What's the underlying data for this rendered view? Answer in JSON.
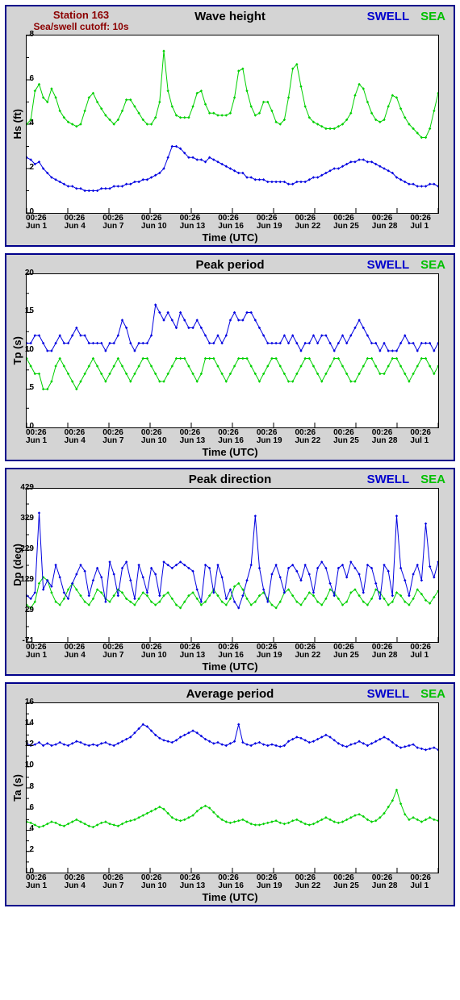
{
  "station_line1": "Station 163",
  "station_line2": "Sea/swell cutoff: 10s",
  "legend_swell": "SWELL",
  "legend_sea": "SEA",
  "colors": {
    "swell": "#0000e0",
    "sea": "#00d000",
    "panel_bg": "#d4d4d4",
    "panel_border": "#00008b",
    "plot_bg": "#ffffff",
    "axis": "#000000",
    "station_text": "#8b0000"
  },
  "x_ticks": [
    {
      "t": "00:26",
      "d": "Jun 1"
    },
    {
      "t": "00:26",
      "d": "Jun 4"
    },
    {
      "t": "00:26",
      "d": "Jun 7"
    },
    {
      "t": "00:26",
      "d": "Jun 10"
    },
    {
      "t": "00:26",
      "d": "Jun 13"
    },
    {
      "t": "00:26",
      "d": "Jun 16"
    },
    {
      "t": "00:26",
      "d": "Jun 19"
    },
    {
      "t": "00:26",
      "d": "Jun 22"
    },
    {
      "t": "00:26",
      "d": "Jun 25"
    },
    {
      "t": "00:26",
      "d": "Jun 28"
    },
    {
      "t": "00:26",
      "d": "Jul 1"
    }
  ],
  "x_label": "Time (UTC)",
  "charts": [
    {
      "id": "wave-height",
      "title": "Wave height",
      "ylabel": "Hs (ft)",
      "ymin": 0,
      "ymax": 8,
      "ytick_step": 2,
      "swell": [
        2.5,
        2.4,
        2.2,
        2.3,
        2.0,
        1.8,
        1.6,
        1.5,
        1.4,
        1.3,
        1.2,
        1.2,
        1.1,
        1.1,
        1.0,
        1.0,
        1.0,
        1.0,
        1.1,
        1.1,
        1.1,
        1.2,
        1.2,
        1.2,
        1.3,
        1.3,
        1.4,
        1.4,
        1.5,
        1.5,
        1.6,
        1.7,
        1.8,
        2.0,
        2.5,
        3.0,
        3.0,
        2.9,
        2.7,
        2.5,
        2.5,
        2.4,
        2.4,
        2.3,
        2.5,
        2.4,
        2.3,
        2.2,
        2.1,
        2.0,
        1.9,
        1.8,
        1.8,
        1.6,
        1.6,
        1.5,
        1.5,
        1.5,
        1.4,
        1.4,
        1.4,
        1.4,
        1.4,
        1.3,
        1.3,
        1.4,
        1.4,
        1.4,
        1.5,
        1.6,
        1.6,
        1.7,
        1.8,
        1.9,
        2.0,
        2.0,
        2.1,
        2.2,
        2.3,
        2.3,
        2.4,
        2.4,
        2.3,
        2.3,
        2.2,
        2.1,
        2.0,
        1.9,
        1.8,
        1.6,
        1.5,
        1.4,
        1.3,
        1.3,
        1.2,
        1.2,
        1.2,
        1.3,
        1.3,
        1.2
      ],
      "sea": [
        4.0,
        4.2,
        5.5,
        5.8,
        5.2,
        5.0,
        5.6,
        5.2,
        4.6,
        4.3,
        4.1,
        4.0,
        3.9,
        4.0,
        4.6,
        5.2,
        5.4,
        5.0,
        4.7,
        4.4,
        4.2,
        4.0,
        4.2,
        4.6,
        5.1,
        5.1,
        4.8,
        4.5,
        4.2,
        4.0,
        4.0,
        4.3,
        5.0,
        7.3,
        5.5,
        4.8,
        4.4,
        4.3,
        4.3,
        4.3,
        4.8,
        5.4,
        5.5,
        4.9,
        4.5,
        4.5,
        4.4,
        4.4,
        4.4,
        4.5,
        5.2,
        6.4,
        6.5,
        5.5,
        4.8,
        4.4,
        4.5,
        5.0,
        5.0,
        4.6,
        4.1,
        4.0,
        4.2,
        5.2,
        6.5,
        6.7,
        5.7,
        4.8,
        4.3,
        4.1,
        4.0,
        3.9,
        3.8,
        3.8,
        3.8,
        3.9,
        4.0,
        4.2,
        4.5,
        5.3,
        5.8,
        5.6,
        5.0,
        4.5,
        4.2,
        4.1,
        4.2,
        4.8,
        5.3,
        5.2,
        4.7,
        4.3,
        4.0,
        3.8,
        3.6,
        3.4,
        3.4,
        3.8,
        4.6,
        5.4
      ]
    },
    {
      "id": "peak-period",
      "title": "Peak period",
      "ylabel": "Tp (s)",
      "ymin": 0,
      "ymax": 20,
      "ytick_step": 5,
      "swell": [
        11,
        11,
        12,
        12,
        11,
        10,
        10,
        11,
        12,
        11,
        11,
        12,
        13,
        12,
        12,
        11,
        11,
        11,
        11,
        10,
        11,
        11,
        12,
        14,
        13,
        11,
        10,
        11,
        11,
        11,
        12,
        16,
        15,
        14,
        15,
        14,
        13,
        15,
        14,
        13,
        13,
        14,
        13,
        12,
        11,
        11,
        12,
        11,
        12,
        14,
        15,
        14,
        14,
        15,
        15,
        14,
        13,
        12,
        11,
        11,
        11,
        11,
        12,
        11,
        12,
        11,
        10,
        11,
        11,
        12,
        11,
        12,
        12,
        11,
        10,
        11,
        12,
        11,
        12,
        13,
        14,
        13,
        12,
        11,
        11,
        10,
        11,
        10,
        10,
        10,
        11,
        12,
        11,
        11,
        10,
        11,
        11,
        11,
        10,
        11
      ],
      "sea": [
        9,
        8,
        7,
        7,
        5,
        5,
        6,
        8,
        9,
        8,
        7,
        6,
        5,
        6,
        7,
        8,
        9,
        8,
        7,
        6,
        7,
        8,
        9,
        8,
        7,
        6,
        7,
        8,
        9,
        9,
        8,
        7,
        6,
        6,
        7,
        8,
        9,
        9,
        9,
        8,
        7,
        6,
        7,
        9,
        9,
        9,
        8,
        7,
        6,
        7,
        8,
        9,
        9,
        9,
        8,
        7,
        6,
        7,
        8,
        9,
        9,
        8,
        7,
        6,
        6,
        7,
        8,
        9,
        9,
        8,
        7,
        6,
        7,
        8,
        9,
        9,
        8,
        7,
        6,
        6,
        7,
        8,
        9,
        9,
        8,
        7,
        7,
        8,
        9,
        9,
        8,
        7,
        6,
        7,
        8,
        9,
        9,
        8,
        7,
        8
      ]
    },
    {
      "id": "peak-direction",
      "title": "Peak direction",
      "ylabel": "Dp (deg)",
      "ymin": -71,
      "ymax": 429,
      "ytick_step": 100,
      "ytick_start": -71,
      "swell": [
        80,
        70,
        90,
        350,
        100,
        130,
        110,
        180,
        140,
        90,
        70,
        120,
        150,
        180,
        160,
        80,
        130,
        170,
        140,
        60,
        190,
        150,
        80,
        170,
        190,
        130,
        70,
        180,
        140,
        90,
        170,
        150,
        80,
        190,
        180,
        170,
        180,
        190,
        180,
        170,
        160,
        100,
        60,
        180,
        170,
        90,
        180,
        140,
        70,
        100,
        60,
        40,
        80,
        130,
        180,
        340,
        170,
        100,
        60,
        150,
        180,
        140,
        90,
        170,
        180,
        160,
        130,
        180,
        150,
        90,
        170,
        190,
        170,
        120,
        80,
        170,
        180,
        140,
        190,
        170,
        150,
        90,
        180,
        170,
        120,
        70,
        180,
        160,
        80,
        340,
        170,
        130,
        80,
        150,
        180,
        130,
        315,
        175,
        140,
        190
      ],
      "sea": [
        50,
        40,
        60,
        120,
        140,
        130,
        90,
        60,
        50,
        70,
        100,
        120,
        100,
        80,
        60,
        50,
        70,
        100,
        90,
        70,
        60,
        80,
        100,
        90,
        70,
        60,
        50,
        70,
        90,
        80,
        60,
        50,
        60,
        80,
        90,
        70,
        50,
        40,
        60,
        80,
        90,
        70,
        50,
        60,
        80,
        100,
        80,
        60,
        50,
        70,
        110,
        120,
        100,
        70,
        50,
        60,
        80,
        90,
        70,
        50,
        40,
        60,
        90,
        100,
        80,
        60,
        50,
        70,
        90,
        80,
        60,
        50,
        70,
        100,
        90,
        70,
        50,
        60,
        90,
        100,
        80,
        60,
        50,
        70,
        100,
        90,
        70,
        50,
        60,
        90,
        80,
        60,
        50,
        70,
        100,
        85,
        65,
        55,
        75,
        95
      ]
    },
    {
      "id": "average-period",
      "title": "Average period",
      "ylabel": "Ta (s)",
      "ymin": 0,
      "ymax": 16,
      "ytick_step": 2,
      "swell": [
        12.2,
        12.0,
        12.1,
        12.3,
        12.0,
        12.2,
        12.0,
        12.1,
        12.3,
        12.1,
        12.0,
        12.2,
        12.4,
        12.3,
        12.1,
        12.0,
        12.1,
        12.0,
        12.2,
        12.3,
        12.1,
        12.0,
        12.2,
        12.4,
        12.6,
        12.8,
        13.2,
        13.6,
        14.0,
        13.8,
        13.4,
        13.0,
        12.7,
        12.5,
        12.4,
        12.3,
        12.5,
        12.8,
        13.0,
        13.2,
        13.4,
        13.2,
        12.9,
        12.6,
        12.4,
        12.2,
        12.3,
        12.1,
        12.0,
        12.2,
        12.4,
        14.0,
        12.3,
        12.1,
        12.0,
        12.2,
        12.3,
        12.1,
        12.0,
        12.1,
        12.0,
        11.9,
        12.0,
        12.4,
        12.6,
        12.8,
        12.7,
        12.5,
        12.3,
        12.4,
        12.6,
        12.8,
        13.0,
        12.8,
        12.5,
        12.2,
        12.0,
        11.9,
        12.1,
        12.2,
        12.4,
        12.2,
        12.0,
        12.2,
        12.4,
        12.6,
        12.8,
        12.6,
        12.3,
        12.0,
        11.8,
        11.9,
        12.0,
        12.1,
        11.8,
        11.7,
        11.6,
        11.7,
        11.8,
        11.6
      ],
      "sea": [
        4.8,
        4.7,
        4.5,
        4.3,
        4.4,
        4.6,
        4.8,
        4.7,
        4.5,
        4.4,
        4.6,
        4.8,
        5.0,
        4.8,
        4.6,
        4.4,
        4.3,
        4.5,
        4.7,
        4.8,
        4.6,
        4.5,
        4.4,
        4.6,
        4.8,
        4.9,
        5.0,
        5.2,
        5.4,
        5.6,
        5.8,
        6.0,
        6.2,
        6.0,
        5.6,
        5.2,
        5.0,
        4.9,
        5.0,
        5.2,
        5.4,
        5.8,
        6.1,
        6.3,
        6.1,
        5.7,
        5.3,
        5.0,
        4.8,
        4.7,
        4.8,
        4.9,
        5.0,
        4.8,
        4.6,
        4.5,
        4.5,
        4.6,
        4.7,
        4.8,
        4.9,
        4.7,
        4.6,
        4.7,
        4.9,
        5.0,
        4.8,
        4.6,
        4.5,
        4.6,
        4.8,
        5.0,
        5.2,
        5.0,
        4.8,
        4.7,
        4.8,
        5.0,
        5.2,
        5.4,
        5.5,
        5.3,
        5.0,
        4.8,
        4.9,
        5.2,
        5.6,
        6.2,
        6.8,
        7.8,
        6.5,
        5.5,
        5.0,
        5.2,
        5.0,
        4.8,
        5.0,
        5.2,
        5.0,
        4.9
      ]
    }
  ]
}
